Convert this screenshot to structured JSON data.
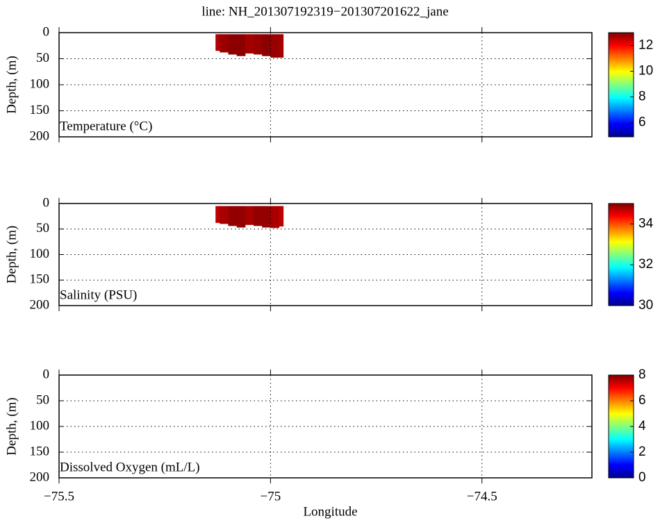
{
  "chart_data": [
    {
      "type": "section",
      "title": "line: NH_201307192319−201307201622_jane",
      "label": "Temperature (°C)",
      "ylabel": "Depth, (m)",
      "xlim": [
        -75.5,
        -74.24
      ],
      "xticks": [
        -75.5,
        -75,
        -74.5
      ],
      "ylim": [
        200,
        0
      ],
      "yticks": [
        0,
        50,
        100,
        150,
        200
      ],
      "grid": true,
      "x": [
        -75.13,
        -75.11,
        -75.09,
        -75.07,
        -75.05,
        -75.03,
        -75.01,
        -74.99,
        -74.97
      ],
      "top": [
        3,
        3,
        3,
        3,
        3,
        3,
        3,
        3,
        3
      ],
      "bottom": [
        35,
        38,
        42,
        45,
        40,
        42,
        45,
        48,
        48
      ],
      "values": [
        12.6,
        12.8,
        12.9,
        12.9,
        12.7,
        12.8,
        12.9,
        12.8,
        12.7
      ],
      "colormap": "jet",
      "clim": [
        4.9,
        13
      ],
      "cticks": [
        6,
        8,
        10,
        12
      ]
    },
    {
      "type": "section",
      "label": "Salinity (PSU)",
      "ylabel": "Depth, (m)",
      "xlim": [
        -75.5,
        -74.24
      ],
      "xticks": [
        -75.5,
        -75,
        -74.5
      ],
      "ylim": [
        200,
        0
      ],
      "yticks": [
        0,
        50,
        100,
        150,
        200
      ],
      "grid": true,
      "x": [
        -75.13,
        -75.11,
        -75.09,
        -75.07,
        -75.05,
        -75.03,
        -75.01,
        -74.99,
        -74.97
      ],
      "top": [
        5,
        5,
        5,
        5,
        5,
        5,
        5,
        5,
        5
      ],
      "bottom": [
        38,
        40,
        44,
        47,
        42,
        44,
        47,
        48,
        45
      ],
      "values": [
        34.7,
        34.8,
        34.9,
        34.9,
        34.8,
        34.9,
        34.9,
        34.8,
        34.7
      ],
      "colormap": "jet",
      "clim": [
        30,
        35
      ],
      "cticks": [
        30,
        32,
        34
      ]
    },
    {
      "type": "section",
      "label": "Dissolved Oxygen (mL/L)",
      "ylabel": "Depth, (m)",
      "xlabel": "Longitude",
      "xlim": [
        -75.5,
        -74.24
      ],
      "xticks": [
        {
          "value": -75.5,
          "label": "−75.5"
        },
        {
          "value": -75,
          "label": "−75"
        },
        {
          "value": -74.5,
          "label": "−74.5"
        }
      ],
      "ylim": [
        200,
        0
      ],
      "yticks": [
        0,
        50,
        100,
        150,
        200
      ],
      "grid": true,
      "x": [],
      "top": [],
      "bottom": [],
      "values": [],
      "colormap": "jet",
      "clim": [
        0,
        8
      ],
      "cticks": [
        0,
        2,
        4,
        6,
        8
      ]
    }
  ]
}
